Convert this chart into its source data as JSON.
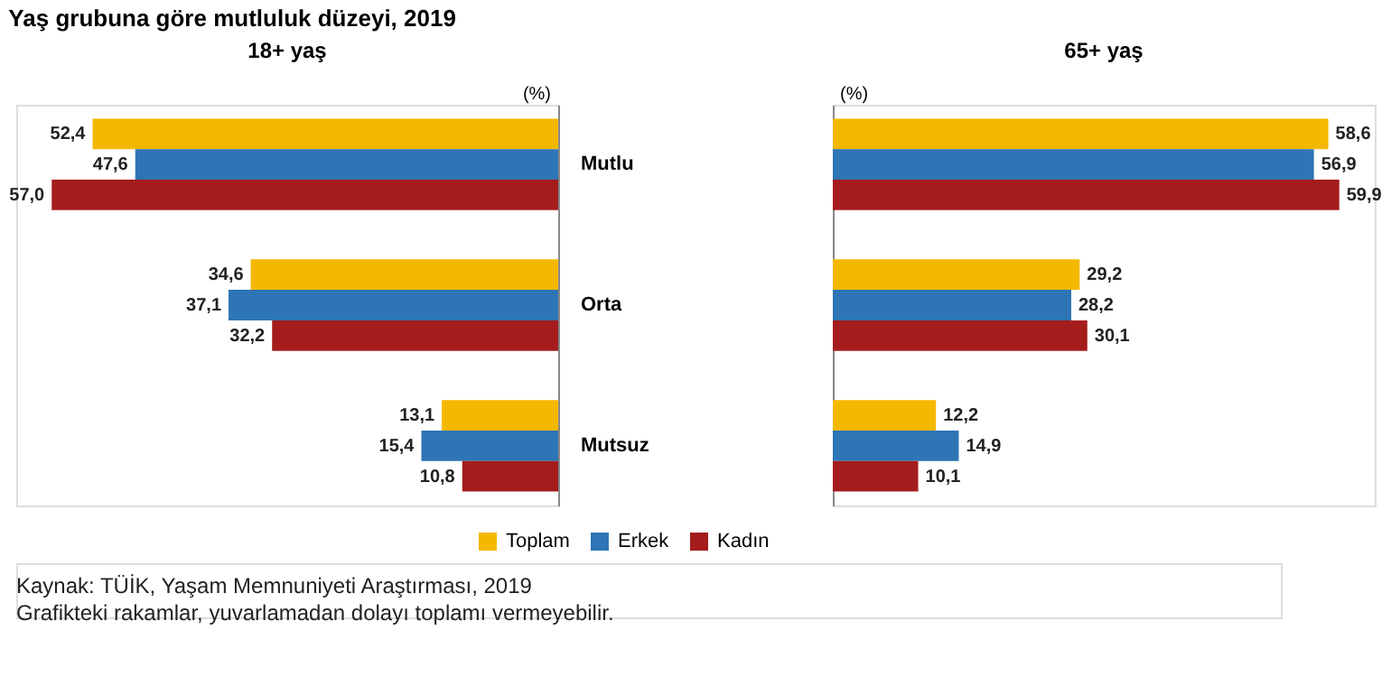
{
  "chart_data": [
    {
      "type": "bar",
      "orientation": "horizontal",
      "title": "Yaş grubuna göre mutluluk düzeyi, 2019",
      "subtitle": "18+ yaş",
      "xlabel": "(%)",
      "categories": [
        "Mutlu",
        "Orta",
        "Mutsuz"
      ],
      "tick_labels": "y",
      "legend": "bottom",
      "grid": false,
      "series": [
        {
          "name": "Toplam",
          "color": "#f5b800",
          "values": [
            52.4,
            34.6,
            13.1
          ],
          "value_labels": [
            "52,4",
            "34,6",
            "13,1"
          ]
        },
        {
          "name": "Erkek",
          "color": "#2e75b6",
          "values": [
            47.6,
            37.1,
            15.4
          ],
          "value_labels": [
            "47,6",
            "37,1",
            "15,4"
          ]
        },
        {
          "name": "Kadın",
          "color": "#a51c1c",
          "values": [
            57.0,
            32.2,
            10.8
          ],
          "value_labels": [
            "57,0",
            "32,2",
            "10,8"
          ]
        }
      ],
      "annotations": [
        "Kaynak: TÜİK, Yaşam Memnuniyeti Araştırması, 2019",
        "Grafikteki rakamlar, yuvarlamadan dolayı toplamı vermeyebilir."
      ]
    },
    {
      "type": "bar",
      "orientation": "horizontal",
      "title": "65+ yaş",
      "xlabel": "(%)",
      "categories": [
        "Mutlu",
        "Orta",
        "Mutsuz"
      ],
      "tick_labels": false,
      "grid": false,
      "series": [
        {
          "name": "Toplam",
          "color": "#f5b800",
          "values": [
            58.6,
            29.2,
            12.2
          ],
          "value_labels": [
            "58,6",
            "29,2",
            "12,2"
          ]
        },
        {
          "name": "Erkek",
          "color": "#2e75b6",
          "values": [
            56.9,
            28.2,
            14.9
          ],
          "value_labels": [
            "56,9",
            "28,2",
            "14,9"
          ]
        },
        {
          "name": "Kadın",
          "color": "#a51c1c",
          "values": [
            59.9,
            30.1,
            10.1
          ],
          "value_labels": [
            "59,9",
            "30,1",
            "10,1"
          ]
        }
      ]
    }
  ]
}
